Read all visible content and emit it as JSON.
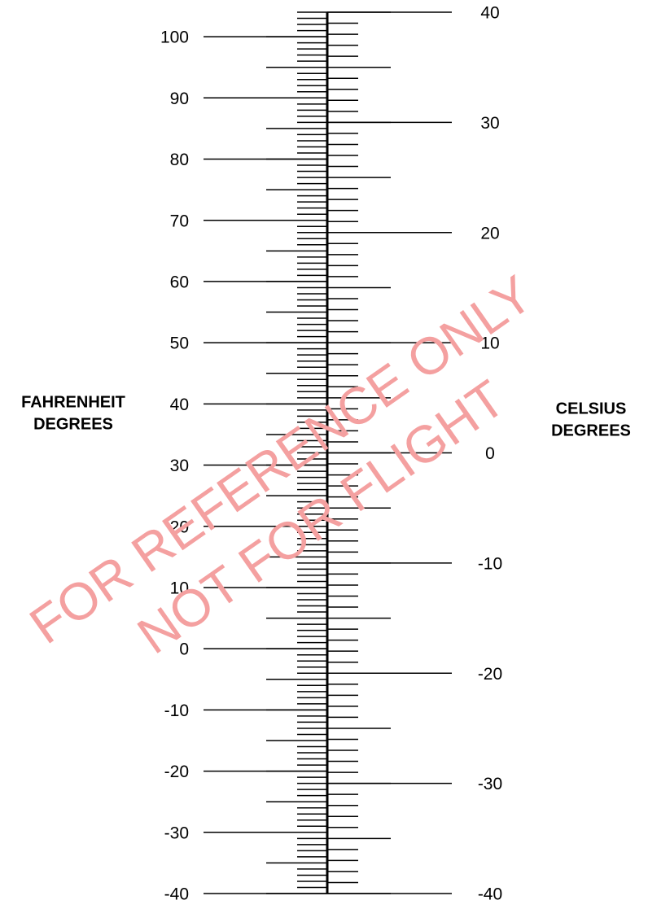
{
  "chart_data": {
    "type": "dual-scale",
    "ylabel": [
      "FAHRENHEIT",
      "DEGREES"
    ],
    "y2label": [
      "CELSIUS",
      "DEGREES"
    ],
    "ylim": [
      -40,
      104
    ],
    "yticks": [
      -40,
      -30,
      -20,
      -10,
      0,
      10,
      20,
      30,
      40,
      50,
      60,
      70,
      80,
      90,
      100
    ],
    "ymid": 5,
    "yminor": 1,
    "y2lim": [
      -40,
      40
    ],
    "y2ticks": [
      -40,
      -30,
      -20,
      -10,
      0,
      10,
      20,
      30,
      40
    ],
    "y2mid": 5,
    "y2minor": 1,
    "color": "#000000",
    "watermark": [
      "FOR REFERENCE ONLY",
      "NOT FOR FLIGHT"
    ],
    "watermark_color": "#f4a0a0"
  }
}
